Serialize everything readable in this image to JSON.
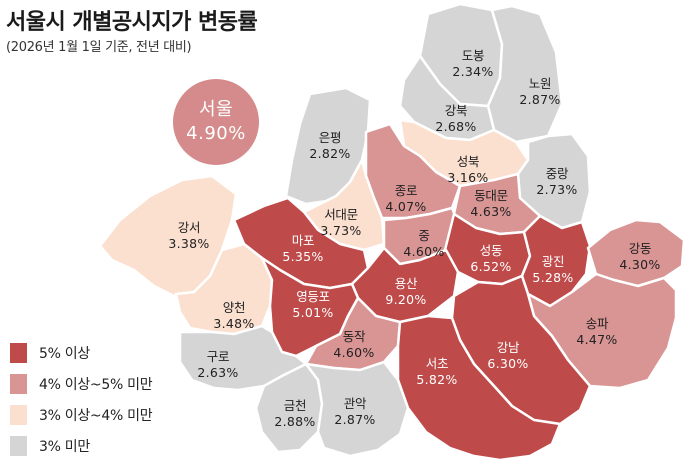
{
  "title": "서울시 개별공시지가 변동률",
  "subtitle": "(2026년 1월 1일 기준, 전년 대비)",
  "seoul": {
    "name": "서울",
    "value": "4.90%"
  },
  "colors": {
    "high": "#bf4a4a",
    "mid": "#d99494",
    "low": "#fbe0d0",
    "base": "#d5d5d5",
    "border": "#ffffff"
  },
  "legend": [
    {
      "label": "5% 이상",
      "color": "#bf4a4a"
    },
    {
      "label": "4% 이상~5% 미만",
      "color": "#d99494"
    },
    {
      "label": "3% 이상~4% 미만",
      "color": "#fbe0d0"
    },
    {
      "label": "3% 미만",
      "color": "#d5d5d5"
    }
  ],
  "districts": [
    {
      "name": "도봉",
      "value": "2.34%",
      "level": "base"
    },
    {
      "name": "노원",
      "value": "2.87%",
      "level": "base"
    },
    {
      "name": "강북",
      "value": "2.68%",
      "level": "base"
    },
    {
      "name": "은평",
      "value": "2.82%",
      "level": "base"
    },
    {
      "name": "성북",
      "value": "3.16%",
      "level": "low"
    },
    {
      "name": "중랑",
      "value": "2.73%",
      "level": "base"
    },
    {
      "name": "종로",
      "value": "4.07%",
      "level": "mid"
    },
    {
      "name": "동대문",
      "value": "4.63%",
      "level": "mid"
    },
    {
      "name": "서대문",
      "value": "3.73%",
      "level": "low"
    },
    {
      "name": "강서",
      "value": "3.38%",
      "level": "low"
    },
    {
      "name": "마포",
      "value": "5.35%",
      "level": "high"
    },
    {
      "name": "중",
      "value": "4.60%",
      "level": "mid"
    },
    {
      "name": "성동",
      "value": "6.52%",
      "level": "high"
    },
    {
      "name": "광진",
      "value": "5.28%",
      "level": "high"
    },
    {
      "name": "강동",
      "value": "4.30%",
      "level": "mid"
    },
    {
      "name": "용산",
      "value": "9.20%",
      "level": "high"
    },
    {
      "name": "양천",
      "value": "3.48%",
      "level": "low"
    },
    {
      "name": "영등포",
      "value": "5.01%",
      "level": "high"
    },
    {
      "name": "송파",
      "value": "4.47%",
      "level": "mid"
    },
    {
      "name": "동작",
      "value": "4.60%",
      "level": "mid"
    },
    {
      "name": "강남",
      "value": "6.30%",
      "level": "high"
    },
    {
      "name": "구로",
      "value": "2.63%",
      "level": "base"
    },
    {
      "name": "서초",
      "value": "5.82%",
      "level": "high"
    },
    {
      "name": "금천",
      "value": "2.88%",
      "level": "base"
    },
    {
      "name": "관악",
      "value": "2.87%",
      "level": "base"
    }
  ]
}
